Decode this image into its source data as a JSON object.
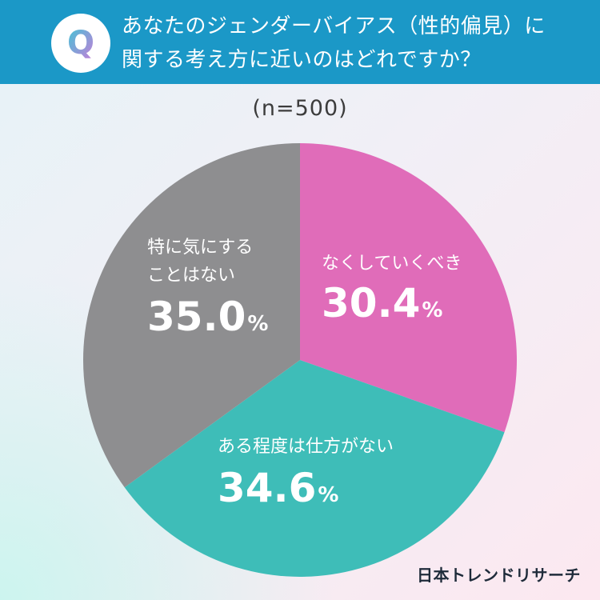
{
  "header": {
    "badge_letter": "Q",
    "question_line1": "あなたのジェンダーバイアス（性的偏見）に",
    "question_line2": "関する考え方に近いのはどれですか？"
  },
  "sample_label": "(n=500)",
  "brand": "日本トレンドリサーチ",
  "colors": {
    "header": "#1b98c7",
    "slice_pink": "#e06cb9",
    "slice_teal": "#3ebdb8",
    "slice_gray": "#8e8e90"
  },
  "chart_data": {
    "type": "pie",
    "n": 500,
    "unit": "%",
    "slices": [
      {
        "label_lines": [
          "なくしていくべき"
        ],
        "value": 30.4,
        "value_text": "30.4",
        "color": "#e06cb9"
      },
      {
        "label_lines": [
          "ある程度は仕方がない"
        ],
        "value": 34.6,
        "value_text": "34.6",
        "color": "#3ebdb8"
      },
      {
        "label_lines": [
          "特に気にする",
          "ことはない"
        ],
        "value": 35.0,
        "value_text": "35.0",
        "color": "#8e8e90"
      }
    ]
  }
}
